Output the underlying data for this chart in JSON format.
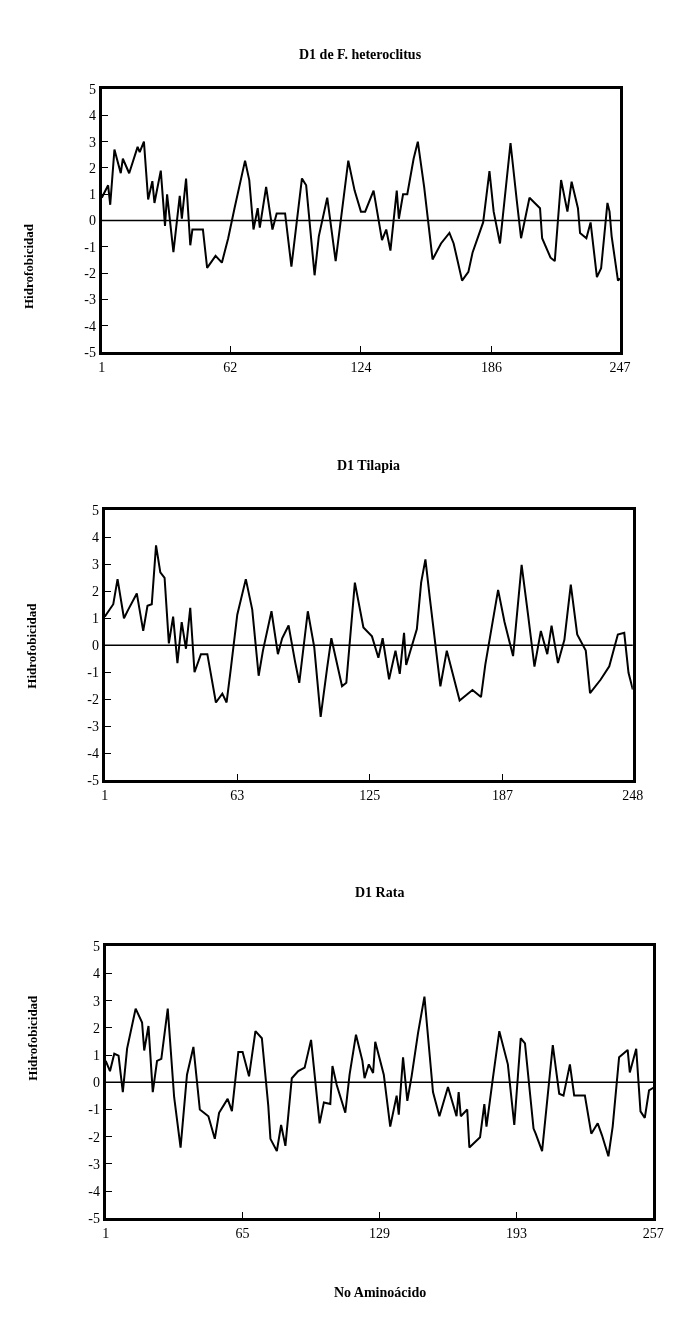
{
  "chart_data": [
    {
      "type": "line",
      "title": "D1 de F. heteroclitus",
      "ylabel": "Hidrofobicidad",
      "color": "#000000",
      "marker": "none",
      "line_style": "solid",
      "xlim": [
        1,
        247
      ],
      "xticks": [
        1,
        62,
        124,
        186,
        247
      ],
      "ylim": [
        -5,
        5
      ],
      "yticks": [
        -5,
        -4,
        -3,
        -2,
        -1,
        0,
        1,
        2,
        3,
        4,
        5
      ],
      "ref_lines": [
        {
          "axis": "y",
          "value": 0,
          "color": "#000000"
        }
      ],
      "x": [
        1,
        4,
        5,
        7,
        10,
        11,
        14,
        18,
        19,
        21,
        23,
        25,
        26,
        29,
        31,
        32,
        35,
        38,
        39,
        41,
        43,
        44,
        49,
        51,
        55,
        58,
        61,
        64,
        69,
        71,
        73,
        75,
        76,
        79,
        82,
        84,
        88,
        91,
        96,
        98,
        102,
        104,
        108,
        112,
        118,
        121,
        124,
        126,
        130,
        134,
        136,
        138,
        141,
        142,
        144,
        146,
        149,
        151,
        154,
        158,
        162,
        166,
        168,
        172,
        175,
        177,
        182,
        185,
        187,
        190,
        195,
        198,
        200,
        204,
        209,
        210,
        214,
        216,
        219,
        222,
        224,
        227,
        228,
        231,
        233,
        236,
        238,
        241,
        242,
        243,
        246,
        247
      ],
      "values": [
        0.87,
        1.34,
        0.6,
        2.7,
        1.8,
        2.35,
        1.8,
        2.8,
        2.6,
        3.0,
        0.8,
        1.5,
        0.67,
        1.9,
        -0.2,
        1.0,
        -1.2,
        0.94,
        0.07,
        1.6,
        -0.94,
        -0.34,
        -0.34,
        -1.8,
        -1.34,
        -1.6,
        -0.67,
        0.47,
        2.28,
        1.54,
        -0.34,
        0.47,
        -0.27,
        1.28,
        -0.34,
        0.27,
        0.27,
        -1.75,
        1.6,
        1.34,
        -2.08,
        -0.6,
        0.87,
        -1.54,
        2.28,
        1.14,
        0.34,
        0.34,
        1.14,
        -0.74,
        -0.34,
        -1.14,
        1.14,
        0.07,
        1.0,
        1.0,
        2.35,
        3.0,
        1.28,
        -1.48,
        -0.87,
        -0.47,
        -0.87,
        -2.28,
        -1.95,
        -1.21,
        -0.07,
        1.88,
        0.34,
        -0.87,
        2.95,
        0.74,
        -0.67,
        0.87,
        0.47,
        -0.67,
        -1.41,
        -1.54,
        1.54,
        0.34,
        1.48,
        0.47,
        -0.47,
        -0.67,
        -0.07,
        -2.15,
        -1.81,
        0.67,
        0.34,
        -0.6,
        -2.28,
        -2.2
      ]
    },
    {
      "type": "line",
      "title": "D1 Tilapia",
      "ylabel": "Hidrofobicidad",
      "color": "#000000",
      "marker": "none",
      "line_style": "solid",
      "xlim": [
        1,
        248
      ],
      "xticks": [
        1,
        63,
        125,
        187,
        248
      ],
      "ylim": [
        -5,
        5
      ],
      "yticks": [
        -5,
        -4,
        -3,
        -2,
        -1,
        0,
        1,
        2,
        3,
        4,
        5
      ],
      "ref_lines": [
        {
          "axis": "y",
          "value": 0,
          "color": "#000000"
        }
      ],
      "x": [
        1,
        5,
        7,
        10,
        12,
        16,
        19,
        21,
        23,
        25,
        27,
        29,
        31,
        33,
        35,
        37,
        39,
        41,
        43,
        46,
        49,
        53,
        56,
        58,
        60,
        63,
        67,
        70,
        73,
        75,
        79,
        82,
        84,
        87,
        90,
        92,
        96,
        99,
        102,
        105,
        107,
        112,
        114,
        118,
        122,
        126,
        129,
        131,
        134,
        137,
        139,
        141,
        142,
        147,
        149,
        151,
        153,
        158,
        161,
        167,
        173,
        177,
        179,
        185,
        188,
        192,
        196,
        199,
        202,
        205,
        208,
        210,
        213,
        216,
        219,
        222,
        226,
        228,
        233,
        237,
        241,
        244,
        246,
        248
      ],
      "values": [
        1.06,
        1.52,
        2.45,
        1.0,
        1.32,
        1.92,
        0.53,
        1.46,
        1.52,
        3.7,
        2.7,
        2.5,
        0.07,
        1.06,
        -0.66,
        0.86,
        -0.13,
        1.39,
        -1.0,
        -0.33,
        -0.33,
        -2.12,
        -1.79,
        -2.12,
        -0.86,
        1.13,
        2.45,
        1.32,
        -1.13,
        -0.2,
        1.26,
        -0.33,
        0.26,
        0.73,
        -0.6,
        -1.39,
        1.26,
        -0.07,
        -2.65,
        -0.86,
        0.26,
        -1.52,
        -1.39,
        2.32,
        0.66,
        0.33,
        -0.46,
        0.26,
        -1.26,
        -0.2,
        -1.06,
        0.46,
        -0.73,
        0.6,
        2.32,
        3.18,
        1.79,
        -1.52,
        -0.2,
        -2.05,
        -1.66,
        -1.92,
        -0.73,
        2.05,
        0.86,
        -0.4,
        2.98,
        1.13,
        -0.79,
        0.53,
        -0.33,
        0.73,
        -0.66,
        0.2,
        2.25,
        0.4,
        -0.2,
        -1.77,
        -1.27,
        -0.78,
        0.4,
        0.46,
        -1.02,
        -1.64
      ]
    },
    {
      "type": "line",
      "title": "D1 Rata",
      "ylabel": "Hidrofobicidad",
      "xlabel": "No Aminoácido",
      "color": "#000000",
      "marker": "none",
      "line_style": "solid",
      "xlim": [
        1,
        257
      ],
      "xticks": [
        1,
        65,
        129,
        193,
        257
      ],
      "ylim": [
        -5,
        5
      ],
      "yticks": [
        -5,
        -4,
        -3,
        -2,
        -1,
        0,
        1,
        2,
        3,
        4,
        5
      ],
      "ref_lines": [
        {
          "axis": "y",
          "value": 0,
          "color": "#000000"
        }
      ],
      "x": [
        1,
        3,
        5,
        7,
        9,
        11,
        15,
        18,
        19,
        21,
        23,
        25,
        27,
        30,
        33,
        36,
        39,
        42,
        45,
        49,
        52,
        54,
        58,
        60,
        63,
        65,
        68,
        71,
        74,
        77,
        78,
        81,
        83,
        85,
        88,
        91,
        94,
        97,
        98,
        101,
        103,
        106,
        107,
        109,
        113,
        115,
        118,
        121,
        122,
        124,
        126,
        127,
        131,
        134,
        137,
        138,
        140,
        142,
        144,
        147,
        150,
        154,
        157,
        161,
        165,
        166,
        167,
        170,
        171,
        176,
        178,
        179,
        182,
        185,
        189,
        192,
        195,
        197,
        201,
        202,
        205,
        210,
        213,
        215,
        218,
        220,
        225,
        228,
        231,
        233,
        236,
        238,
        241,
        245,
        246,
        249,
        251,
        253,
        255,
        257
      ],
      "values": [
        0.79,
        0.41,
        1.05,
        0.98,
        -0.36,
        1.24,
        2.71,
        2.2,
        1.17,
        2.07,
        -0.36,
        0.79,
        0.86,
        2.71,
        -0.55,
        -2.4,
        0.28,
        1.3,
        -1.0,
        -1.25,
        -2.08,
        -1.12,
        -0.61,
        -1.06,
        1.11,
        1.11,
        0.22,
        1.88,
        1.62,
        -0.87,
        -2.08,
        -2.53,
        -1.57,
        -2.34,
        0.15,
        0.41,
        0.54,
        1.56,
        0.79,
        -1.51,
        -0.74,
        -0.8,
        0.6,
        -0.1,
        -1.12,
        0.28,
        1.75,
        0.79,
        0.15,
        0.66,
        0.34,
        1.49,
        0.28,
        -1.63,
        -0.49,
        -1.19,
        0.92,
        -0.68,
        0.22,
        1.81,
        3.15,
        -0.36,
        -1.25,
        -0.17,
        -1.25,
        -0.36,
        -1.25,
        -1.0,
        -2.4,
        -2.02,
        -0.8,
        -1.63,
        0.15,
        1.88,
        0.66,
        -1.57,
        1.62,
        1.43,
        -1.7,
        -1.89,
        -2.53,
        1.37,
        -0.42,
        -0.49,
        0.66,
        -0.49,
        -0.49,
        -1.89,
        -1.51,
        -1.95,
        -2.72,
        -1.63,
        0.92,
        1.19,
        0.36,
        1.23,
        -1.07,
        -1.31,
        -0.3,
        -0.2
      ]
    }
  ]
}
